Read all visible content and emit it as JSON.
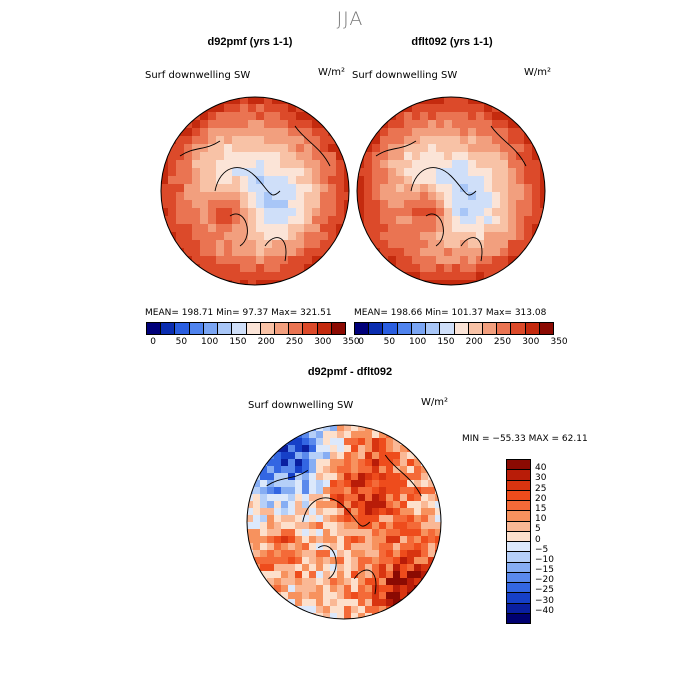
{
  "figure": {
    "title": "JJA"
  },
  "chart_data": [
    {
      "type": "heatmap",
      "projection": "north polar stereographic",
      "title": "d92pmf (yrs 1-1)",
      "variable": "Surf downwelling SW",
      "units": "W/m²",
      "stats": "MEAN= 198.71  Min=  97.37  Max= 321.51",
      "mean": 198.71,
      "min": 97.37,
      "max": 321.51,
      "colorbar": {
        "ticks": [
          "0",
          "50",
          "100",
          "150",
          "200",
          "250",
          "300",
          "350"
        ],
        "colors": [
          "#00007a",
          "#0a2db0",
          "#2a5ee0",
          "#4f83ee",
          "#7aa5f3",
          "#a8c6f7",
          "#cfdff9",
          "#fbe4d7",
          "#f8c2a6",
          "#f29f7e",
          "#ea7452",
          "#dc4a2a",
          "#c42a0e",
          "#8b0a02"
        ]
      }
    },
    {
      "type": "heatmap",
      "projection": "north polar stereographic",
      "title": "dflt092 (yrs 1-1)",
      "variable": "Surf downwelling SW",
      "units": "W/m²",
      "stats": "MEAN= 198.66  Min= 101.37  Max= 313.08",
      "mean": 198.66,
      "min": 101.37,
      "max": 313.08,
      "colorbar": {
        "ticks": [
          "0",
          "50",
          "100",
          "150",
          "200",
          "250",
          "300",
          "350"
        ],
        "colors": [
          "#00007a",
          "#0a2db0",
          "#2a5ee0",
          "#4f83ee",
          "#7aa5f3",
          "#a8c6f7",
          "#cfdff9",
          "#fbe4d7",
          "#f8c2a6",
          "#f29f7e",
          "#ea7452",
          "#dc4a2a",
          "#c42a0e",
          "#8b0a02"
        ]
      }
    },
    {
      "type": "heatmap",
      "projection": "north polar stereographic",
      "title": "d92pmf - dflt092",
      "variable": "Surf downwelling SW",
      "units": "W/m²",
      "stats": "MIN = −55.33  MAX =  62.11",
      "min": -55.33,
      "max": 62.11,
      "colorbar": {
        "ticks": [
          "40",
          "30",
          "25",
          "20",
          "15",
          "10",
          "5",
          "0",
          "−5",
          "−10",
          "−15",
          "−20",
          "−25",
          "−30",
          "−40"
        ],
        "colors": [
          "#8b0a02",
          "#b81c08",
          "#d83410",
          "#ee4c1c",
          "#f46a38",
          "#f7925e",
          "#fab895",
          "#fde0cc",
          "#dce8fb",
          "#b5cff8",
          "#86adf3",
          "#5a89ec",
          "#3366e2",
          "#1640c8",
          "#0a1fa0",
          "#000070"
        ]
      }
    }
  ]
}
